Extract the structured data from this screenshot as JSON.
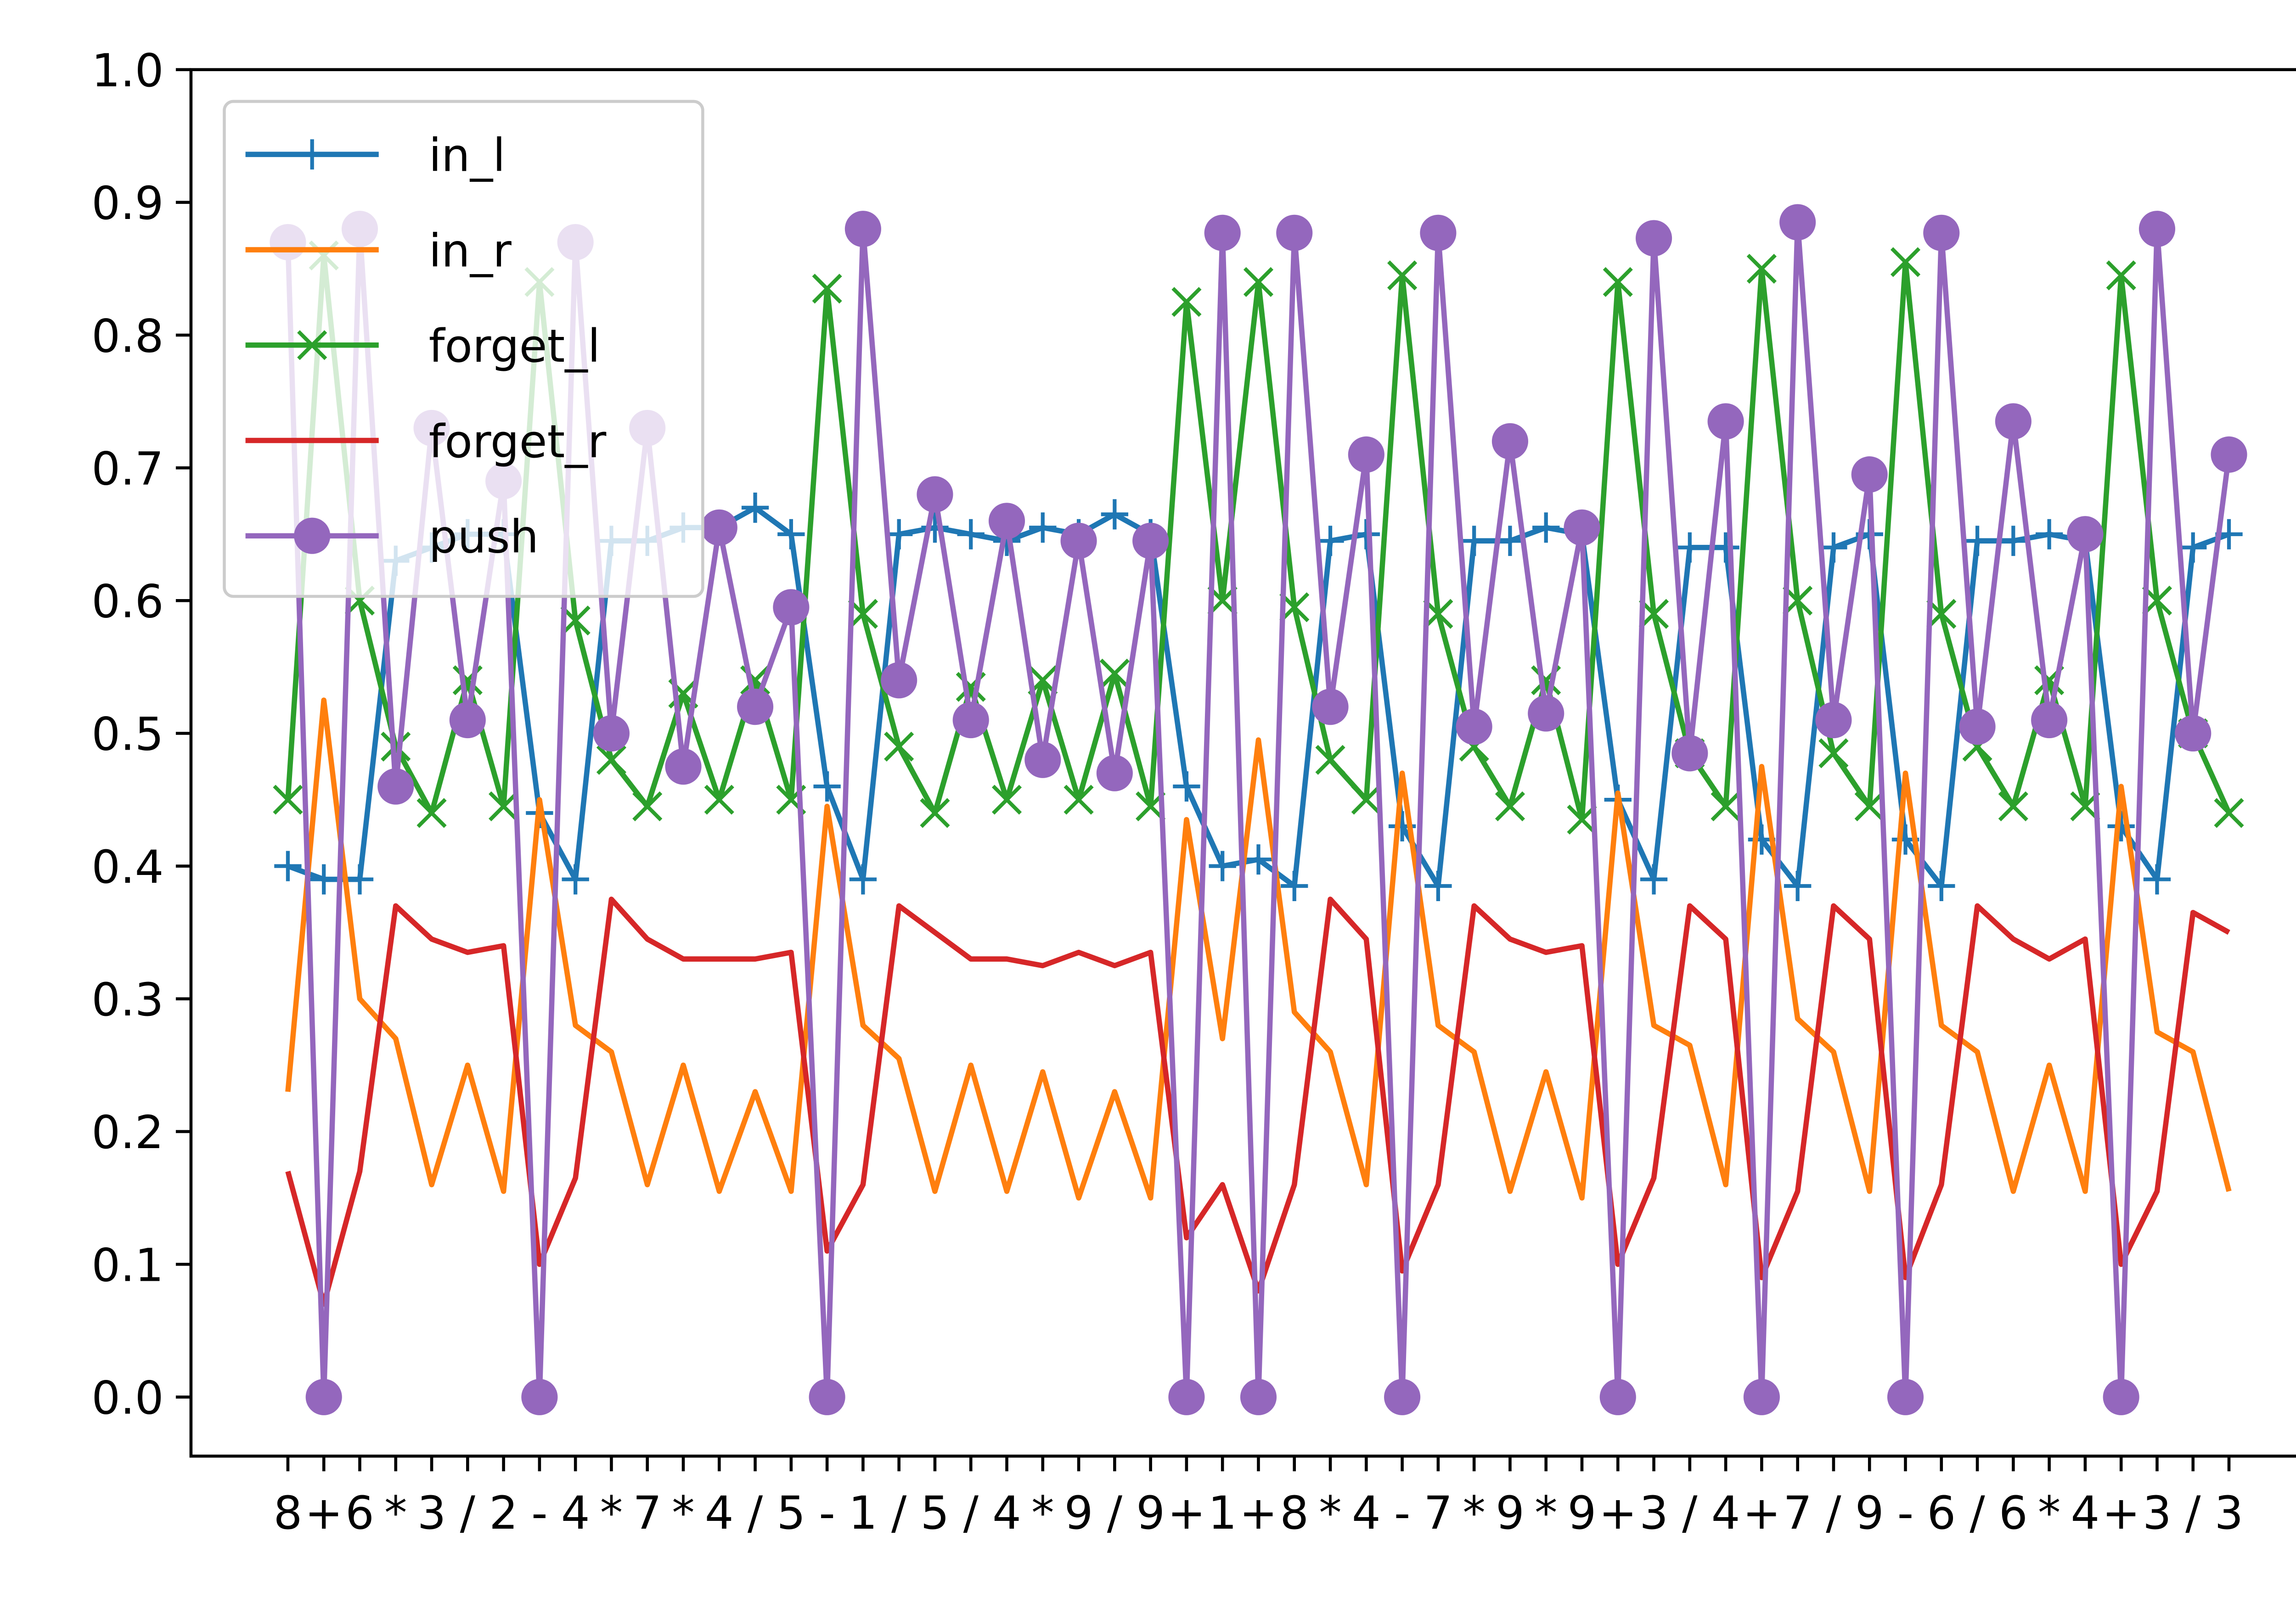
{
  "chart_data": {
    "type": "line",
    "categories": [
      "8",
      "+",
      "6",
      "*",
      "3",
      "/",
      "2",
      "-",
      "4",
      "*",
      "7",
      "*",
      "4",
      "/",
      "5",
      "-",
      "1",
      "/",
      "5",
      "/",
      "4",
      "*",
      "9",
      "/",
      "9",
      "+",
      "1",
      "+",
      "8",
      "*",
      "4",
      "-",
      "7",
      "*",
      "9",
      "*",
      "9",
      "+",
      "3",
      "/",
      "4",
      "+",
      "7",
      "/",
      "9",
      "-",
      "6",
      "/",
      "6",
      "*",
      "4",
      "+",
      "3",
      "/",
      "3"
    ],
    "series": [
      {
        "name": "in_l",
        "color": "#1f77b4",
        "marker": "plus",
        "values": [
          0.4,
          0.39,
          0.39,
          0.63,
          0.64,
          0.65,
          0.65,
          0.44,
          0.39,
          0.645,
          0.645,
          0.655,
          0.655,
          0.67,
          0.65,
          0.46,
          0.39,
          0.65,
          0.655,
          0.65,
          0.645,
          0.655,
          0.65,
          0.665,
          0.65,
          0.46,
          0.4,
          0.405,
          0.385,
          0.645,
          0.65,
          0.43,
          0.385,
          0.645,
          0.645,
          0.655,
          0.65,
          0.45,
          0.39,
          0.64,
          0.64,
          0.42,
          0.385,
          0.64,
          0.65,
          0.42,
          0.385,
          0.645,
          0.645,
          0.65,
          0.645,
          0.43,
          0.39,
          0.64,
          0.65
        ]
      },
      {
        "name": "in_r",
        "color": "#ff7f0e",
        "marker": "none",
        "values": [
          0.23,
          0.525,
          0.3,
          0.27,
          0.16,
          0.25,
          0.155,
          0.45,
          0.28,
          0.26,
          0.16,
          0.25,
          0.155,
          0.23,
          0.155,
          0.445,
          0.28,
          0.255,
          0.155,
          0.25,
          0.155,
          0.245,
          0.15,
          0.23,
          0.15,
          0.435,
          0.27,
          0.495,
          0.29,
          0.26,
          0.16,
          0.47,
          0.28,
          0.26,
          0.155,
          0.245,
          0.15,
          0.455,
          0.28,
          0.265,
          0.16,
          0.475,
          0.285,
          0.26,
          0.155,
          0.47,
          0.28,
          0.26,
          0.155,
          0.25,
          0.155,
          0.46,
          0.275,
          0.26,
          0.155
        ]
      },
      {
        "name": "forget_l",
        "color": "#2ca02c",
        "marker": "x",
        "values": [
          0.45,
          0.86,
          0.6,
          0.49,
          0.44,
          0.54,
          0.445,
          0.84,
          0.585,
          0.48,
          0.445,
          0.53,
          0.45,
          0.54,
          0.45,
          0.835,
          0.59,
          0.49,
          0.44,
          0.535,
          0.45,
          0.54,
          0.45,
          0.545,
          0.445,
          0.825,
          0.6,
          0.84,
          0.595,
          0.48,
          0.45,
          0.845,
          0.59,
          0.49,
          0.445,
          0.54,
          0.435,
          0.84,
          0.59,
          0.485,
          0.445,
          0.85,
          0.6,
          0.485,
          0.445,
          0.855,
          0.59,
          0.49,
          0.445,
          0.54,
          0.445,
          0.845,
          0.6,
          0.5,
          0.44
        ]
      },
      {
        "name": "forget_r",
        "color": "#d62728",
        "marker": "none",
        "values": [
          0.17,
          0.07,
          0.17,
          0.37,
          0.345,
          0.335,
          0.34,
          0.1,
          0.165,
          0.375,
          0.345,
          0.33,
          0.33,
          0.33,
          0.335,
          0.11,
          0.16,
          0.37,
          0.35,
          0.33,
          0.33,
          0.325,
          0.335,
          0.325,
          0.335,
          0.12,
          0.16,
          0.08,
          0.16,
          0.375,
          0.345,
          0.095,
          0.16,
          0.37,
          0.345,
          0.335,
          0.34,
          0.1,
          0.165,
          0.37,
          0.345,
          0.09,
          0.155,
          0.37,
          0.345,
          0.09,
          0.16,
          0.37,
          0.345,
          0.33,
          0.345,
          0.1,
          0.155,
          0.365,
          0.35
        ]
      },
      {
        "name": "push",
        "color": "#9467bd",
        "marker": "circle",
        "values": [
          0.87,
          0,
          0.88,
          0.46,
          0.73,
          0.51,
          0.69,
          0,
          0.87,
          0.5,
          0.73,
          0.475,
          0.655,
          0.52,
          0.595,
          0,
          0.88,
          0.54,
          0.68,
          0.51,
          0.66,
          0.48,
          0.645,
          0.47,
          0.645,
          0,
          0.877,
          0,
          0.877,
          0.52,
          0.71,
          0,
          0.877,
          0.505,
          0.72,
          0.515,
          0.655,
          0,
          0.873,
          0.485,
          0.735,
          0,
          0.885,
          0.51,
          0.695,
          0,
          0.877,
          0.505,
          0.735,
          0.51,
          0.65,
          0,
          0.88,
          0.5,
          0.71
        ]
      }
    ],
    "ylim": [
      -0.0445,
      1.0
    ],
    "yticks": [
      {
        "value": 0,
        "label": "0.0"
      },
      0.1,
      0.2,
      0.3,
      0.4,
      0.5,
      0.6,
      0.7,
      0.8,
      0.9,
      {
        "value": 1,
        "label": "1.0"
      }
    ],
    "legend": "upper left",
    "grid": false
  }
}
